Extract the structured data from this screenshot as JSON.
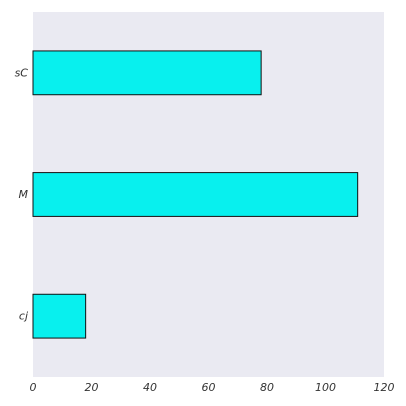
{
  "chart_data": {
    "type": "bar",
    "orientation": "horizontal",
    "categories": [
      "sC",
      "M",
      "cj"
    ],
    "values": [
      78,
      111,
      18
    ],
    "xlim": [
      0,
      120
    ],
    "xticks": [
      "0",
      "20",
      "40",
      "60",
      "80",
      "100",
      "120"
    ],
    "title": "",
    "xlabel": "",
    "ylabel": "",
    "grid": false,
    "legend": "none"
  },
  "colors": {
    "plot_background": "#EAEAF2",
    "bar_fill": "#08F0EE",
    "bar_edge": "#111111"
  }
}
